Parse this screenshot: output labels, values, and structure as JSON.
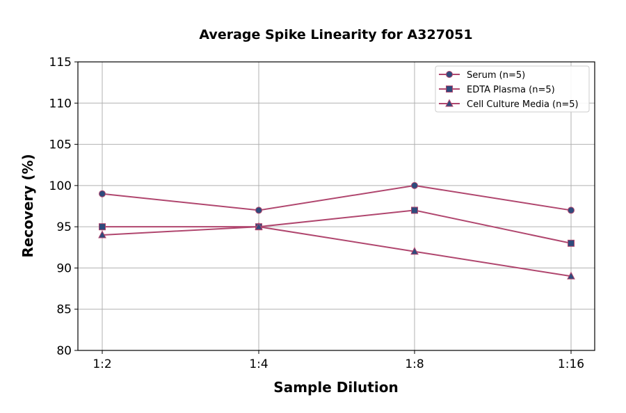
{
  "chart_data": {
    "type": "line",
    "title": "Average Spike Linearity for A327051",
    "xlabel": "Sample Dilution",
    "ylabel": "Recovery (%)",
    "categories": [
      "1:2",
      "1:4",
      "1:8",
      "1:16"
    ],
    "ylim": [
      80,
      115
    ],
    "yticks": [
      80,
      85,
      90,
      95,
      100,
      105,
      110,
      115
    ],
    "grid": true,
    "legend_position": "top-right",
    "line_color": "#b0466e",
    "marker_color": "#2f4b7c",
    "series": [
      {
        "name": "Serum (n=5)",
        "marker": "circle",
        "values": [
          99,
          97,
          100,
          97
        ]
      },
      {
        "name": "EDTA Plasma (n=5)",
        "marker": "square",
        "values": [
          95,
          95,
          97,
          93
        ]
      },
      {
        "name": "Cell Culture Media (n=5)",
        "marker": "triangle",
        "values": [
          94,
          95,
          92,
          89
        ]
      }
    ]
  }
}
